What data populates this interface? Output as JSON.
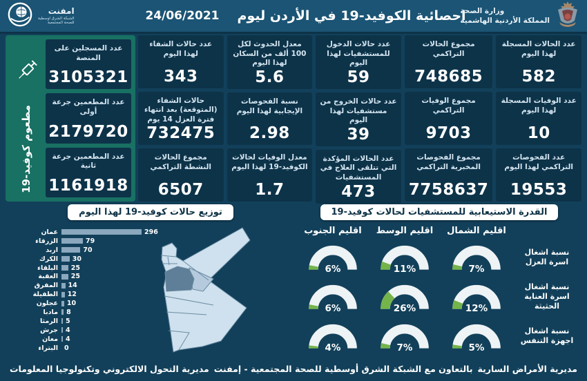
{
  "header": {
    "title": "احصائية الكوفيد-19 في الأردن ليوم",
    "date": "24/06/2021",
    "ministry": {
      "line1": "وزارة الصحة",
      "line2": "المملكة الأردنية الهاشمية"
    },
    "emphnet": {
      "name": "امفنت",
      "sub1": "الشبكة الشرق اوسطية",
      "sub2": "للصحة المجتمعية"
    }
  },
  "vaccine_panel": {
    "vertical_label": "مطعوم كوفيد-19",
    "cards": [
      {
        "label": "عدد المسجلين على المنصة",
        "value": "3105321"
      },
      {
        "label": "عدد المطعمين جرعة أولى",
        "value": "2179720"
      },
      {
        "label": "عدد المطعمين جرعة ثانية",
        "value": "1161918"
      }
    ]
  },
  "stat_columns": [
    {
      "cards": [
        {
          "label": "عدد الحالات المسجلة لهذا اليوم",
          "value": "582"
        },
        {
          "label": "عدد الوفيات المسجلة لهذا اليوم",
          "value": "10"
        },
        {
          "label": "عدد الفحوصات التراكمي لهذا اليوم",
          "value": "19553"
        }
      ]
    },
    {
      "cards": [
        {
          "label": "مجموع الحالات التراكمي",
          "value": "748685"
        },
        {
          "label": "مجموع الوفيات التراكمي",
          "value": "9703"
        },
        {
          "label": "مجموع الفحوصات المخبرية التراكمي",
          "value": "7758637"
        }
      ]
    },
    {
      "cards": [
        {
          "label": "عدد حالات الدخول للمستشفيات لهذا اليوم",
          "value": "59"
        },
        {
          "label": "عدد حالات الخروج من مستشفيات لهذا اليوم",
          "value": "39"
        },
        {
          "label": "عدد الحالات المؤكدة التي تتلقى العلاج في المستشفيات",
          "value": "473"
        }
      ]
    },
    {
      "cards": [
        {
          "label": "معدل الحدوث لكل 100 ألف من السكان لهذا اليوم",
          "value": "5.6"
        },
        {
          "label": "نسبة الفحوصات الإيجابية لهذا اليوم",
          "value": "2.98"
        },
        {
          "label": "معدل الوفيات لحالات الكوفيد-19 لهذا اليوم",
          "value": "1.7"
        }
      ]
    },
    {
      "cards": [
        {
          "label": "عدد حالات الشفاء لهذا اليوم",
          "value": "343"
        },
        {
          "label": "حالات الشفاء (المتوقعة) بعد انتهاء فترة العزل 14 يوم",
          "value": "732475"
        },
        {
          "label": "مجموع الحالات النشطة التراكمي",
          "value": "6507"
        }
      ]
    }
  ],
  "chart_data": [
    {
      "type": "bar",
      "orientation": "horizontal",
      "title": "توزيع حالات كوفيد-19 لهذا اليوم",
      "categories": [
        "عمان",
        "الزرقاء",
        "اربد",
        "الكرك",
        "البلقاء",
        "العقبة",
        "المفرق",
        "الطفيلة",
        "عجلون",
        "مادبا",
        "الرمثا",
        "جرش",
        "معان",
        "البتراء"
      ],
      "values": [
        296,
        79,
        70,
        30,
        25,
        25,
        14,
        12,
        10,
        8,
        5,
        4,
        4,
        0
      ],
      "xlim": [
        0,
        300
      ],
      "bar_color": "#8ba8bf"
    },
    {
      "type": "gauge",
      "title": "القدرة الاستيعابية للمستشفيات لحالات كوفيد-19",
      "columns": [
        "اقليم الشمال",
        "اقليم الوسط",
        "اقليم الجنوب"
      ],
      "rows": [
        {
          "label": "نسبة اشغال اسرة العزل",
          "values": [
            7,
            11,
            6
          ]
        },
        {
          "label": "نسبة اشغال اسرة العناية الحثيثة",
          "values": [
            12,
            26,
            6
          ]
        },
        {
          "label": "نسبة اشغال اجهزة التنفس",
          "values": [
            5,
            7,
            4
          ]
        }
      ],
      "unit": "%",
      "gauge_color": "#74b44a",
      "track_color": "#eef3f6"
    }
  ],
  "footer": {
    "right": "مديرية الأمراض السارية",
    "center": "بالتعاون مع الشبكة الشرق أوسطية للصحة المجتمعية - إمفنت",
    "left": "مديرية التحول الالكتروني وتكنولوجيا المعلومات"
  },
  "colors": {
    "header_bg": "#1b5474",
    "page_bg": "#12405a",
    "card_bg": "#0d3349",
    "vaccine_panel_green": "#187163",
    "gauge_green": "#74b44a",
    "bar_fill": "#8ba8bf",
    "map_fill": "#cfe1ee",
    "map_amman_fill": "#5f7e97"
  }
}
